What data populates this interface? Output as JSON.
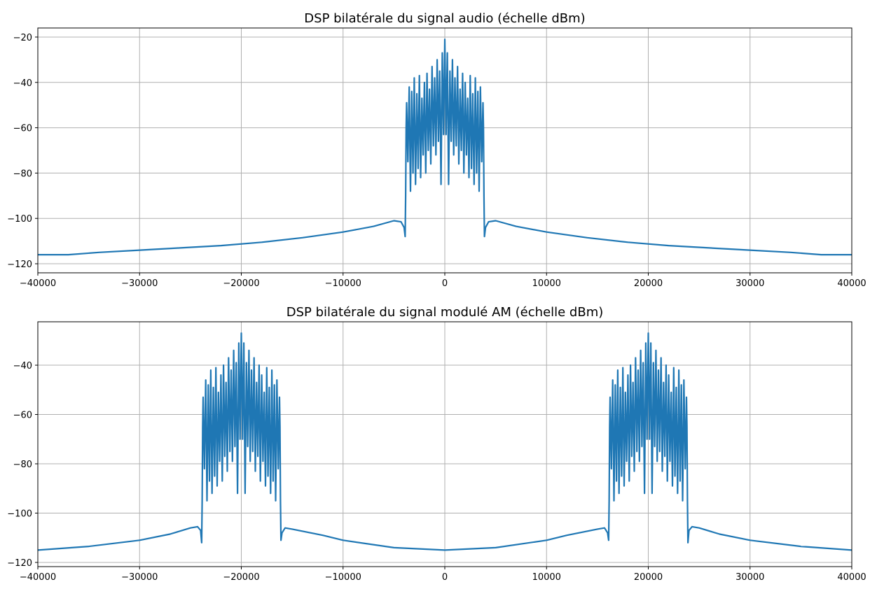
{
  "chart_data": [
    {
      "type": "line",
      "title": "DSP bilatérale du signal audio (échelle dBm)",
      "xlabel": "",
      "ylabel": "",
      "xlim": [
        -40000,
        40000
      ],
      "ylim": [
        -124,
        -16
      ],
      "xticks": [
        -40000,
        -30000,
        -20000,
        -10000,
        0,
        10000,
        20000,
        30000,
        40000
      ],
      "yticks": [
        -120,
        -100,
        -80,
        -60,
        -40,
        -20
      ],
      "grid": true,
      "color": "#1f77b4",
      "points": [
        [
          -40000,
          -116
        ],
        [
          -37000,
          -116
        ],
        [
          -34000,
          -115
        ],
        [
          -30000,
          -114
        ],
        [
          -26000,
          -113
        ],
        [
          -22000,
          -112
        ],
        [
          -18000,
          -110.5
        ],
        [
          -14000,
          -108.5
        ],
        [
          -10000,
          -106
        ],
        [
          -7000,
          -103.5
        ],
        [
          -5000,
          -101
        ],
        [
          -4300,
          -101.5
        ],
        [
          -4000,
          -104
        ],
        [
          -3900,
          -108
        ],
        [
          -3850,
          -90
        ],
        [
          -3800,
          -60
        ],
        [
          -3750,
          -49
        ],
        [
          -3625,
          -75
        ],
        [
          -3500,
          -42
        ],
        [
          -3375,
          -88
        ],
        [
          -3250,
          -44
        ],
        [
          -3125,
          -80
        ],
        [
          -3000,
          -38
        ],
        [
          -2875,
          -85
        ],
        [
          -2750,
          -45
        ],
        [
          -2625,
          -78
        ],
        [
          -2500,
          -37
        ],
        [
          -2375,
          -82
        ],
        [
          -2250,
          -47
        ],
        [
          -2125,
          -72
        ],
        [
          -2000,
          -40
        ],
        [
          -1875,
          -80
        ],
        [
          -1750,
          -36
        ],
        [
          -1625,
          -70
        ],
        [
          -1500,
          -43
        ],
        [
          -1375,
          -76
        ],
        [
          -1250,
          -33
        ],
        [
          -1125,
          -68
        ],
        [
          -1000,
          -38
        ],
        [
          -875,
          -72
        ],
        [
          -750,
          -30
        ],
        [
          -625,
          -66
        ],
        [
          -500,
          -35
        ],
        [
          -375,
          -85
        ],
        [
          -250,
          -27
        ],
        [
          -125,
          -63
        ],
        [
          0,
          -21
        ],
        [
          125,
          -63
        ],
        [
          250,
          -27
        ],
        [
          375,
          -85
        ],
        [
          500,
          -35
        ],
        [
          625,
          -66
        ],
        [
          750,
          -30
        ],
        [
          875,
          -72
        ],
        [
          1000,
          -38
        ],
        [
          1125,
          -68
        ],
        [
          1250,
          -33
        ],
        [
          1375,
          -76
        ],
        [
          1500,
          -43
        ],
        [
          1625,
          -70
        ],
        [
          1750,
          -36
        ],
        [
          1875,
          -80
        ],
        [
          2000,
          -40
        ],
        [
          2125,
          -72
        ],
        [
          2250,
          -47
        ],
        [
          2375,
          -82
        ],
        [
          2500,
          -37
        ],
        [
          2625,
          -78
        ],
        [
          2750,
          -45
        ],
        [
          2875,
          -85
        ],
        [
          3000,
          -38
        ],
        [
          3125,
          -80
        ],
        [
          3250,
          -44
        ],
        [
          3375,
          -88
        ],
        [
          3500,
          -42
        ],
        [
          3625,
          -75
        ],
        [
          3750,
          -49
        ],
        [
          3800,
          -60
        ],
        [
          3850,
          -90
        ],
        [
          3900,
          -108
        ],
        [
          4000,
          -104
        ],
        [
          4300,
          -101.5
        ],
        [
          5000,
          -101
        ],
        [
          7000,
          -103.5
        ],
        [
          10000,
          -106
        ],
        [
          14000,
          -108.5
        ],
        [
          18000,
          -110.5
        ],
        [
          22000,
          -112
        ],
        [
          26000,
          -113
        ],
        [
          30000,
          -114
        ],
        [
          34000,
          -115
        ],
        [
          37000,
          -116
        ],
        [
          40000,
          -116
        ]
      ]
    },
    {
      "type": "line",
      "title": "DSP bilatérale du signal modulé AM (échelle dBm)",
      "xlabel": "",
      "ylabel": "",
      "xlim": [
        -40000,
        40000
      ],
      "ylim": [
        -121.7,
        -22.4
      ],
      "xticks": [
        -40000,
        -30000,
        -20000,
        -10000,
        0,
        10000,
        20000,
        30000,
        40000
      ],
      "yticks": [
        -120,
        -100,
        -80,
        -60,
        -40
      ],
      "grid": true,
      "color": "#1f77b4",
      "points": [
        [
          -40000,
          -115
        ],
        [
          -35000,
          -113.5
        ],
        [
          -30000,
          -111
        ],
        [
          -27000,
          -108.5
        ],
        [
          -25000,
          -106
        ],
        [
          -24300,
          -105.5
        ],
        [
          -24000,
          -107
        ],
        [
          -23900,
          -112
        ],
        [
          -23850,
          -95
        ],
        [
          -23800,
          -65
        ],
        [
          -23750,
          -53
        ],
        [
          -23625,
          -82
        ],
        [
          -23500,
          -46
        ],
        [
          -23375,
          -95
        ],
        [
          -23250,
          -48
        ],
        [
          -23125,
          -87
        ],
        [
          -23000,
          -42
        ],
        [
          -22875,
          -92
        ],
        [
          -22750,
          -49
        ],
        [
          -22625,
          -85
        ],
        [
          -22500,
          -41
        ],
        [
          -22375,
          -89
        ],
        [
          -22250,
          -51
        ],
        [
          -22125,
          -79
        ],
        [
          -22000,
          -44
        ],
        [
          -21875,
          -87
        ],
        [
          -21750,
          -40
        ],
        [
          -21625,
          -77
        ],
        [
          -21500,
          -47
        ],
        [
          -21375,
          -83
        ],
        [
          -21250,
          -37
        ],
        [
          -21125,
          -75
        ],
        [
          -21000,
          -42
        ],
        [
          -20875,
          -79
        ],
        [
          -20750,
          -34
        ],
        [
          -20625,
          -73
        ],
        [
          -20500,
          -39
        ],
        [
          -20375,
          -92
        ],
        [
          -20250,
          -31
        ],
        [
          -20125,
          -70
        ],
        [
          -20000,
          -27
        ],
        [
          -19875,
          -70
        ],
        [
          -19750,
          -31
        ],
        [
          -19625,
          -92
        ],
        [
          -19500,
          -39
        ],
        [
          -19375,
          -73
        ],
        [
          -19250,
          -34
        ],
        [
          -19125,
          -79
        ],
        [
          -19000,
          -42
        ],
        [
          -18875,
          -75
        ],
        [
          -18750,
          -37
        ],
        [
          -18625,
          -83
        ],
        [
          -18500,
          -47
        ],
        [
          -18375,
          -77
        ],
        [
          -18250,
          -40
        ],
        [
          -18125,
          -87
        ],
        [
          -18000,
          -44
        ],
        [
          -17875,
          -79
        ],
        [
          -17750,
          -51
        ],
        [
          -17625,
          -89
        ],
        [
          -17500,
          -41
        ],
        [
          -17375,
          -85
        ],
        [
          -17250,
          -49
        ],
        [
          -17125,
          -92
        ],
        [
          -17000,
          -42
        ],
        [
          -16875,
          -87
        ],
        [
          -16750,
          -48
        ],
        [
          -16625,
          -95
        ],
        [
          -16500,
          -46
        ],
        [
          -16375,
          -82
        ],
        [
          -16250,
          -53
        ],
        [
          -16200,
          -65
        ],
        [
          -16150,
          -95
        ],
        [
          -16100,
          -111
        ],
        [
          -16000,
          -108
        ],
        [
          -15700,
          -106
        ],
        [
          -15000,
          -106.5
        ],
        [
          -12000,
          -109
        ],
        [
          -10000,
          -111
        ],
        [
          -5000,
          -114
        ],
        [
          0,
          -115
        ],
        [
          5000,
          -114
        ],
        [
          10000,
          -111
        ],
        [
          12000,
          -109
        ],
        [
          15000,
          -106.5
        ],
        [
          15700,
          -106
        ],
        [
          16000,
          -108
        ],
        [
          16100,
          -111
        ],
        [
          16150,
          -95
        ],
        [
          16200,
          -65
        ],
        [
          16250,
          -53
        ],
        [
          16375,
          -82
        ],
        [
          16500,
          -46
        ],
        [
          16625,
          -95
        ],
        [
          16750,
          -48
        ],
        [
          16875,
          -87
        ],
        [
          17000,
          -42
        ],
        [
          17125,
          -92
        ],
        [
          17250,
          -49
        ],
        [
          17375,
          -85
        ],
        [
          17500,
          -41
        ],
        [
          17625,
          -89
        ],
        [
          17750,
          -51
        ],
        [
          17875,
          -79
        ],
        [
          18000,
          -44
        ],
        [
          18125,
          -87
        ],
        [
          18250,
          -40
        ],
        [
          18375,
          -77
        ],
        [
          18500,
          -47
        ],
        [
          18625,
          -83
        ],
        [
          18750,
          -37
        ],
        [
          18875,
          -75
        ],
        [
          19000,
          -42
        ],
        [
          19125,
          -79
        ],
        [
          19250,
          -34
        ],
        [
          19375,
          -73
        ],
        [
          19500,
          -39
        ],
        [
          19625,
          -92
        ],
        [
          19750,
          -31
        ],
        [
          19875,
          -70
        ],
        [
          20000,
          -27
        ],
        [
          20125,
          -70
        ],
        [
          20250,
          -31
        ],
        [
          20375,
          -92
        ],
        [
          20500,
          -39
        ],
        [
          20625,
          -73
        ],
        [
          20750,
          -34
        ],
        [
          20875,
          -79
        ],
        [
          21000,
          -42
        ],
        [
          21125,
          -75
        ],
        [
          21250,
          -37
        ],
        [
          21375,
          -83
        ],
        [
          21500,
          -47
        ],
        [
          21625,
          -77
        ],
        [
          21750,
          -40
        ],
        [
          21875,
          -87
        ],
        [
          22000,
          -44
        ],
        [
          22125,
          -79
        ],
        [
          22250,
          -51
        ],
        [
          22375,
          -89
        ],
        [
          22500,
          -41
        ],
        [
          22625,
          -85
        ],
        [
          22750,
          -49
        ],
        [
          22875,
          -92
        ],
        [
          23000,
          -42
        ],
        [
          23125,
          -87
        ],
        [
          23250,
          -48
        ],
        [
          23375,
          -95
        ],
        [
          23500,
          -46
        ],
        [
          23625,
          -82
        ],
        [
          23750,
          -53
        ],
        [
          23800,
          -65
        ],
        [
          23850,
          -95
        ],
        [
          23900,
          -112
        ],
        [
          24000,
          -107
        ],
        [
          24300,
          -105.5
        ],
        [
          25000,
          -106
        ],
        [
          27000,
          -108.5
        ],
        [
          30000,
          -111
        ],
        [
          35000,
          -113.5
        ],
        [
          40000,
          -115
        ]
      ]
    }
  ]
}
